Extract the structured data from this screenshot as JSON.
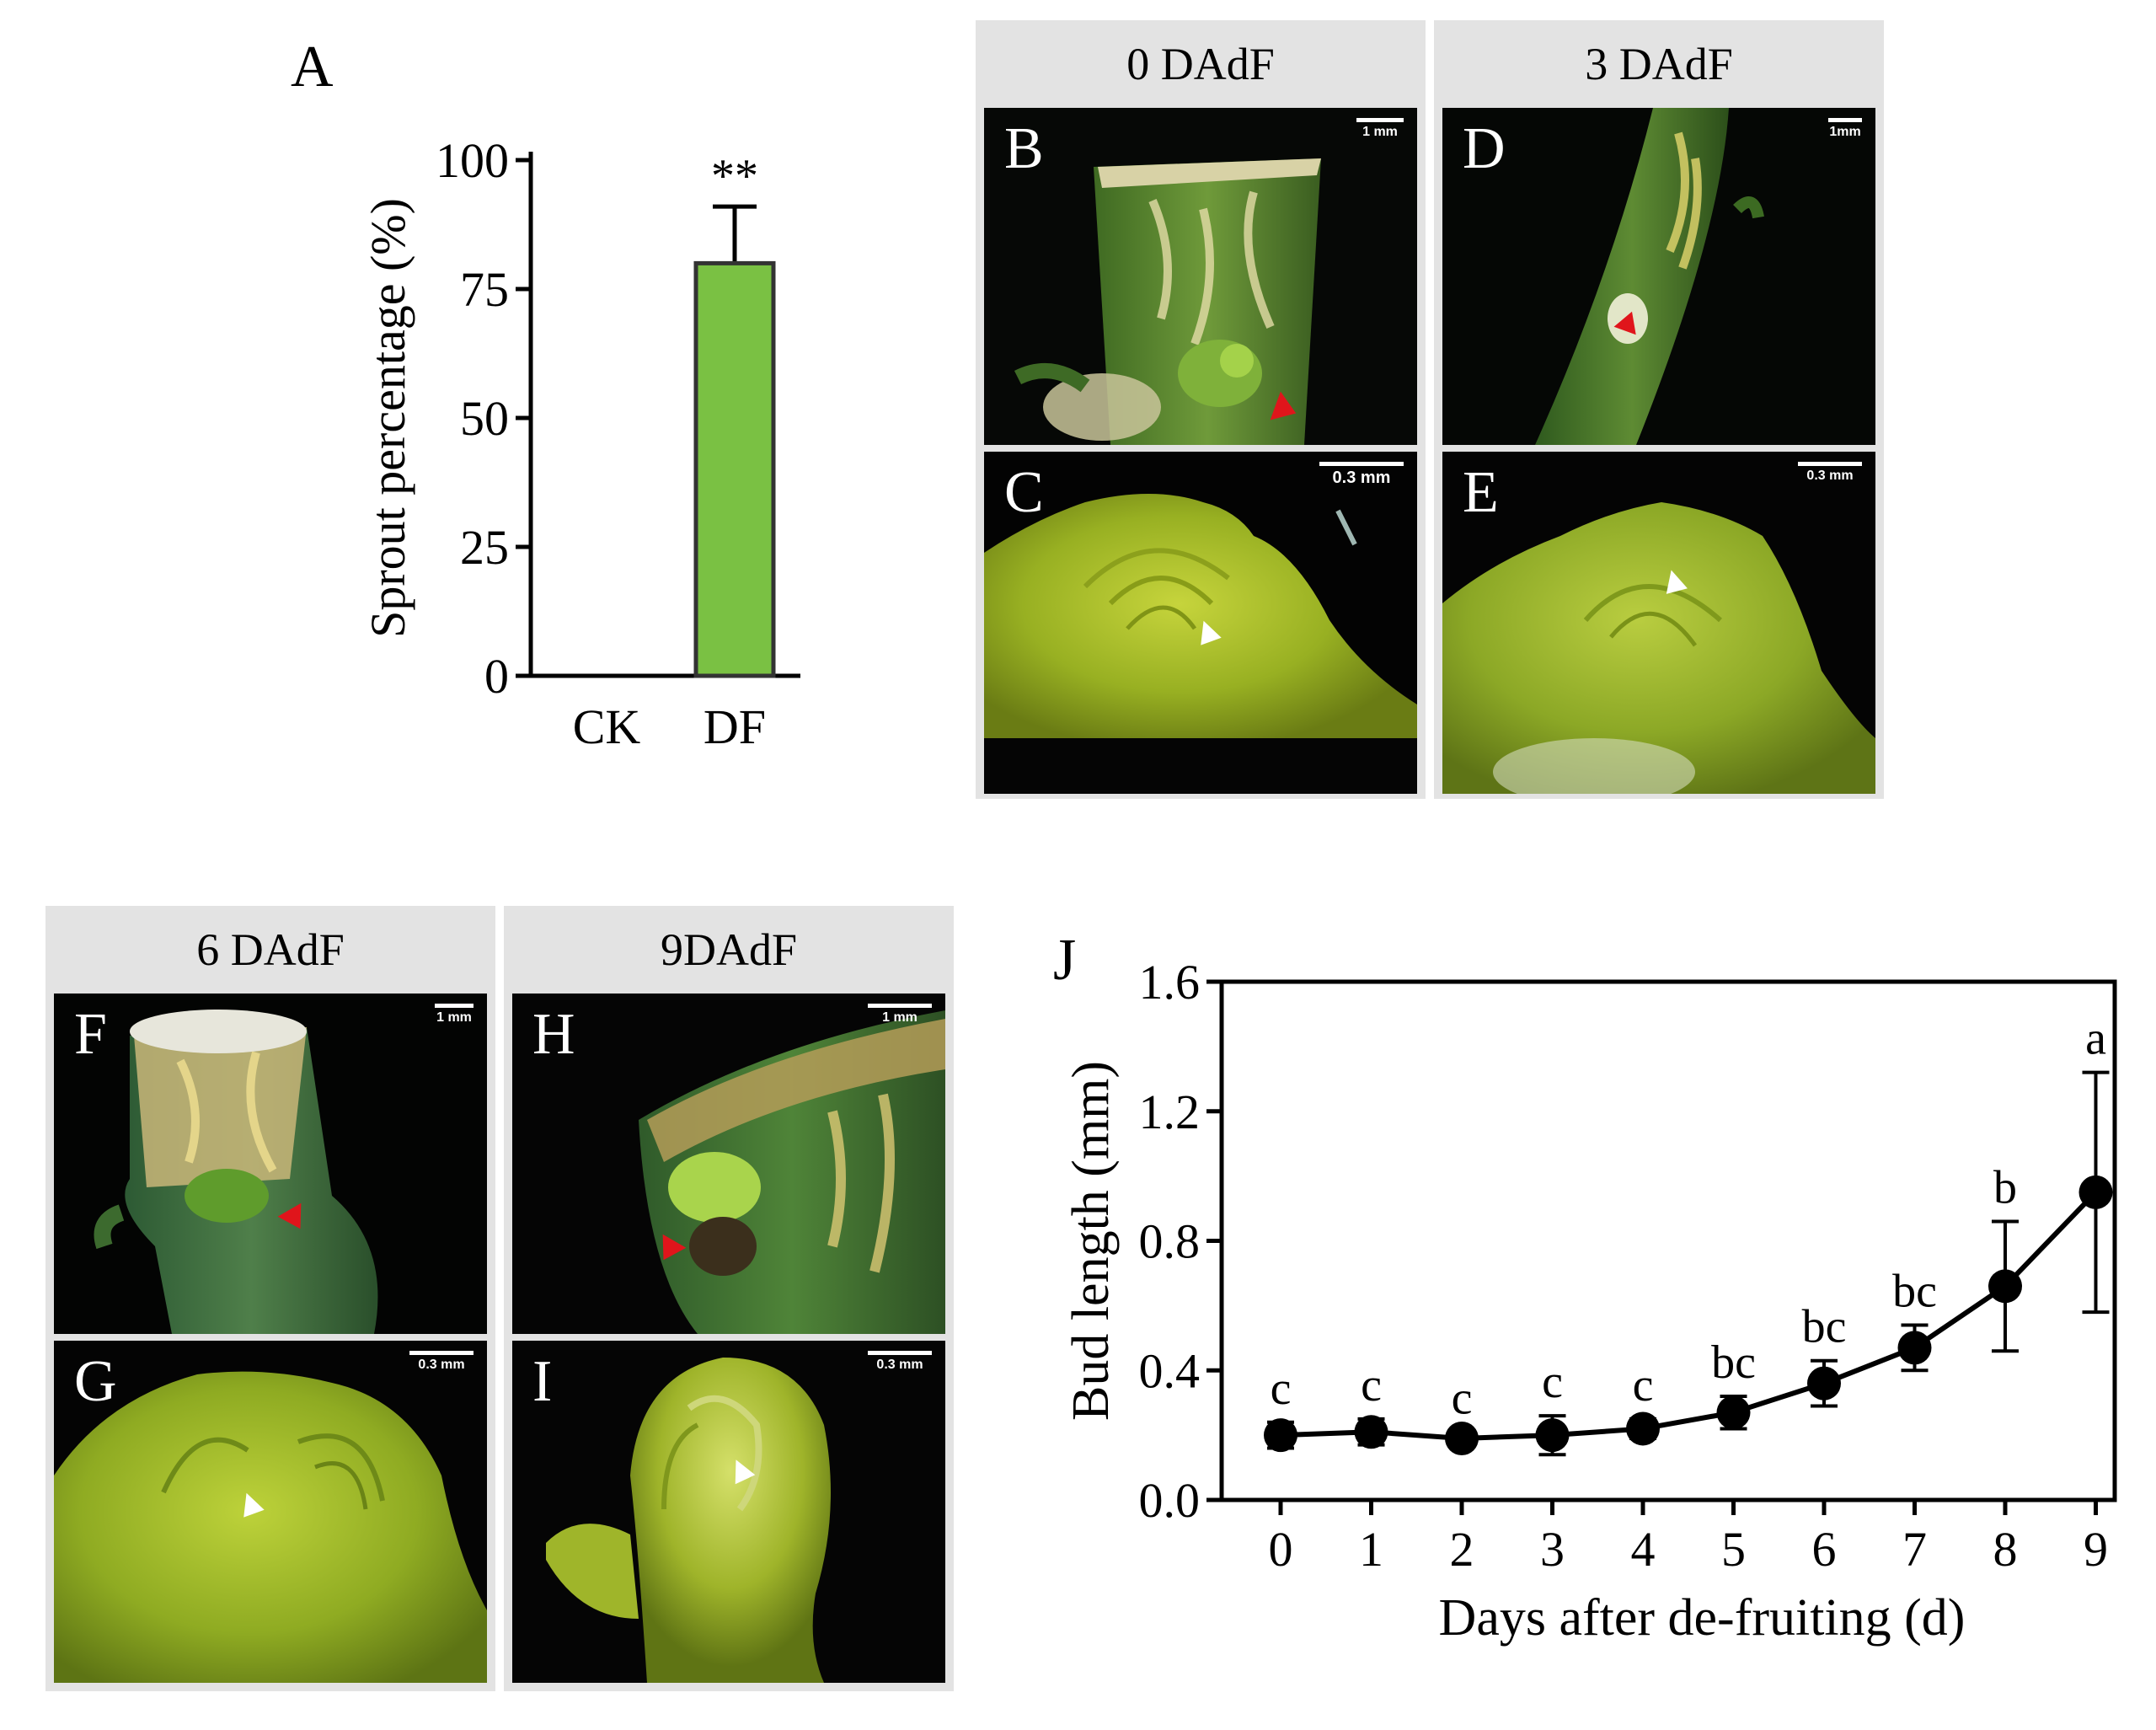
{
  "panel_labels": [
    "A",
    "B",
    "C",
    "D",
    "E",
    "F",
    "G",
    "H",
    "I",
    "J"
  ],
  "groups": [
    {
      "header": "0 DAdF",
      "top": {
        "letter": "B",
        "scale": "1 mm"
      },
      "bottom": {
        "letter": "C",
        "scale": "0.3 mm"
      }
    },
    {
      "header": "3 DAdF",
      "top": {
        "letter": "D",
        "scale": "1mm"
      },
      "bottom": {
        "letter": "E",
        "scale": "0.3 mm"
      }
    },
    {
      "header": "6 DAdF",
      "top": {
        "letter": "F",
        "scale": "1 mm"
      },
      "bottom": {
        "letter": "G",
        "scale": "0.3 mm"
      }
    },
    {
      "header": "9DAdF",
      "top": {
        "letter": "H",
        "scale": "1 mm"
      },
      "bottom": {
        "letter": "I",
        "scale": "0.3 mm"
      }
    }
  ],
  "chart_data": [
    {
      "type": "bar",
      "panel": "A",
      "categories": [
        "CK",
        "DF"
      ],
      "values": [
        0,
        80
      ],
      "errors": [
        0,
        11
      ],
      "annotations": [
        "",
        "**"
      ],
      "ylabel": "Sprout percentage (%)",
      "ylim": [
        0,
        100
      ],
      "yticks": [
        0,
        25,
        50,
        75,
        100
      ],
      "bar_color": "#7ac143"
    },
    {
      "type": "line",
      "panel": "J",
      "x": [
        0,
        1,
        2,
        3,
        4,
        5,
        6,
        7,
        8,
        9
      ],
      "y": [
        0.2,
        0.21,
        0.19,
        0.2,
        0.22,
        0.27,
        0.36,
        0.47,
        0.66,
        0.95
      ],
      "errors": [
        0.04,
        0.04,
        0.02,
        0.06,
        0.03,
        0.05,
        0.07,
        0.07,
        0.2,
        0.37
      ],
      "letters": [
        "c",
        "c",
        "c",
        "c",
        "c",
        "bc",
        "bc",
        "bc",
        "b",
        "a"
      ],
      "xlabel": "Days after de-fruiting (d)",
      "ylabel": "Bud length (mm)",
      "xlim": [
        0,
        9
      ],
      "ylim": [
        0,
        1.6
      ],
      "yticks": [
        "0.0",
        "0.4",
        "0.8",
        "1.2",
        "1.6"
      ],
      "xticks": [
        0,
        1,
        2,
        3,
        4,
        5,
        6,
        7,
        8,
        9
      ]
    }
  ]
}
